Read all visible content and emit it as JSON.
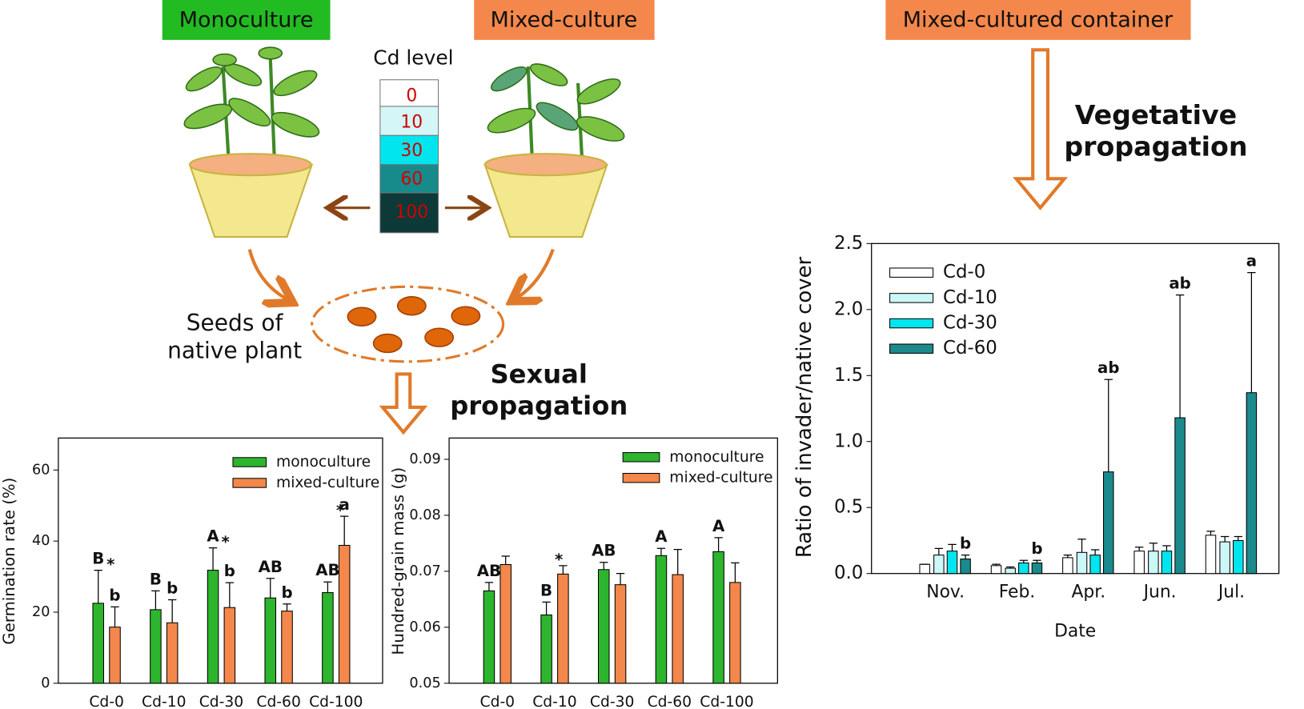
{
  "diagram": {
    "monoculture_box": "Monoculture",
    "mixed_culture_box": "Mixed-culture",
    "cd_level_title": "Cd level",
    "cd_levels": [
      "0",
      "10",
      "30",
      "60",
      "100"
    ],
    "seeds_label": [
      "Seeds of",
      "native plant"
    ],
    "sexual_label": [
      "Sexual",
      "propagation"
    ],
    "container_box": "Mixed-cultured container",
    "vegetative_label": [
      "Vegetative",
      "propagation"
    ]
  },
  "chart_data": [
    {
      "type": "bar",
      "ylabel": "Germination rate (%)",
      "categories": [
        "Cd-0",
        "Cd-10",
        "Cd-30",
        "Cd-60",
        "Cd-100"
      ],
      "series": [
        {
          "name": "monoculture",
          "color": "#2db52d",
          "values": [
            22.5,
            20.7,
            31.8,
            24,
            25.5
          ],
          "errors": [
            9.3,
            5.3,
            6.3,
            5.5,
            3
          ],
          "labels": [
            "B",
            "B",
            "A",
            "AB",
            "AB"
          ]
        },
        {
          "name": "mixed-culture",
          "color": "#f4874b",
          "values": [
            15.8,
            17,
            21.3,
            20.3,
            38.8
          ],
          "errors": [
            5.7,
            6.5,
            7,
            2,
            8.2
          ],
          "labels": [
            "b",
            "b",
            "b",
            "b",
            "a"
          ]
        }
      ],
      "significance": [
        "*",
        null,
        "*",
        null,
        "*"
      ],
      "ylim": [
        0,
        69
      ],
      "yticks": [
        0,
        20,
        40,
        60
      ],
      "legend": "upper right"
    },
    {
      "type": "bar",
      "ylabel": "Hundred-grain mass (g)",
      "categories": [
        "Cd-0",
        "Cd-10",
        "Cd-30",
        "Cd-60",
        "Cd-100"
      ],
      "series": [
        {
          "name": "monoculture",
          "color": "#2db52d",
          "values": [
            0.0665,
            0.0622,
            0.0703,
            0.0728,
            0.0735
          ],
          "errors": [
            0.0015,
            0.0023,
            0.0013,
            0.0013,
            0.0025
          ],
          "labels": [
            "AB",
            "B",
            "AB",
            "A",
            "A"
          ]
        },
        {
          "name": "mixed-culture",
          "color": "#f4874b",
          "values": [
            0.0712,
            0.0695,
            0.0676,
            0.0694,
            0.068
          ],
          "errors": [
            0.0015,
            0.0015,
            0.002,
            0.0045,
            0.0035
          ],
          "labels": [
            null,
            null,
            null,
            null,
            null
          ]
        }
      ],
      "significance": [
        null,
        "*",
        null,
        null,
        null
      ],
      "ylim": [
        0.05,
        0.0938
      ],
      "yticks": [
        0.05,
        0.06,
        0.07,
        0.08,
        0.09
      ],
      "legend": "upper right"
    },
    {
      "type": "bar",
      "xlabel": "Date",
      "ylabel": "Ratio of invader/native cover",
      "categories": [
        "Nov.",
        "Feb.",
        "Apr.",
        "Jun.",
        "Jul."
      ],
      "series": [
        {
          "name": "Cd-0",
          "color": "#ffffff",
          "values": [
            0.07,
            0.06,
            0.12,
            0.17,
            0.29
          ],
          "errors": [
            0,
            0.01,
            0.02,
            0.03,
            0.03
          ],
          "labels": [
            null,
            null,
            null,
            null,
            null
          ]
        },
        {
          "name": "Cd-10",
          "color": "#ccf7f7",
          "values": [
            0.14,
            0.04,
            0.16,
            0.17,
            0.24
          ],
          "errors": [
            0.05,
            0.01,
            0.1,
            0.06,
            0.04
          ],
          "labels": [
            null,
            null,
            null,
            null,
            null
          ]
        },
        {
          "name": "Cd-30",
          "color": "#00e5ee",
          "values": [
            0.17,
            0.08,
            0.14,
            0.17,
            0.25
          ],
          "errors": [
            0.05,
            0.02,
            0.04,
            0.04,
            0.03
          ],
          "labels": [
            null,
            null,
            null,
            null,
            null
          ]
        },
        {
          "name": "Cd-60",
          "color": "#1b8a8c",
          "values": [
            0.11,
            0.08,
            0.77,
            1.18,
            1.37
          ],
          "errors": [
            0.03,
            0.02,
            0.7,
            0.93,
            0.91
          ],
          "labels": [
            "b",
            "b",
            "ab",
            "ab",
            "a"
          ]
        }
      ],
      "significance": [
        null,
        null,
        null,
        null,
        null
      ],
      "ylim": [
        0,
        2.5
      ],
      "yticks": [
        {
          "value": 0,
          "label": "0.0"
        },
        0.5,
        {
          "value": 1,
          "label": "1.0"
        },
        1.5,
        {
          "value": 2,
          "label": "2.0"
        },
        2.5
      ],
      "legend": "upper left"
    }
  ]
}
